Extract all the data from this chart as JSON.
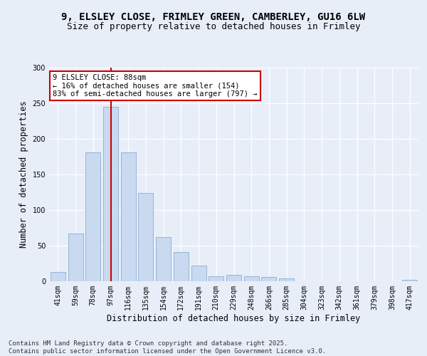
{
  "title_line1": "9, ELSLEY CLOSE, FRIMLEY GREEN, CAMBERLEY, GU16 6LW",
  "title_line2": "Size of property relative to detached houses in Frimley",
  "xlabel": "Distribution of detached houses by size in Frimley",
  "ylabel": "Number of detached properties",
  "categories": [
    "41sqm",
    "59sqm",
    "78sqm",
    "97sqm",
    "116sqm",
    "135sqm",
    "154sqm",
    "172sqm",
    "191sqm",
    "210sqm",
    "229sqm",
    "248sqm",
    "266sqm",
    "285sqm",
    "304sqm",
    "323sqm",
    "342sqm",
    "361sqm",
    "379sqm",
    "398sqm",
    "417sqm"
  ],
  "values": [
    13,
    67,
    181,
    245,
    181,
    124,
    62,
    41,
    22,
    7,
    9,
    7,
    6,
    4,
    0,
    0,
    0,
    0,
    0,
    0,
    2
  ],
  "bar_color": "#c9d9f0",
  "bar_edge_color": "#8aadd4",
  "vline_x": 3.0,
  "vline_color": "#cc0000",
  "annotation_text": "9 ELSLEY CLOSE: 88sqm\n← 16% of detached houses are smaller (154)\n83% of semi-detached houses are larger (797) →",
  "annotation_box_color": "#ffffff",
  "annotation_box_edge": "#cc0000",
  "ylim": [
    0,
    300
  ],
  "yticks": [
    0,
    50,
    100,
    150,
    200,
    250,
    300
  ],
  "footnote": "Contains HM Land Registry data © Crown copyright and database right 2025.\nContains public sector information licensed under the Open Government Licence v3.0.",
  "bg_color": "#e8eef8",
  "plot_bg_color": "#e8eef8",
  "title_fontsize": 10,
  "subtitle_fontsize": 9,
  "tick_fontsize": 7,
  "label_fontsize": 8.5,
  "footnote_fontsize": 6.5,
  "annotation_fontsize": 7.5
}
